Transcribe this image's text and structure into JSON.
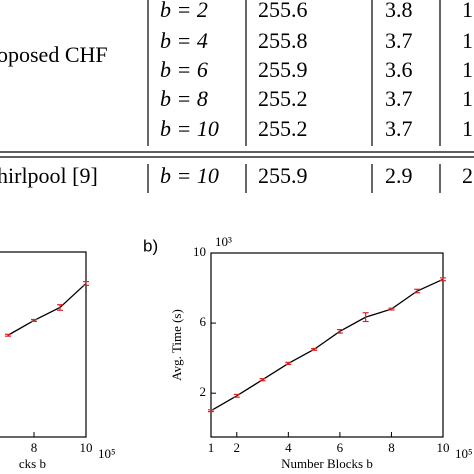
{
  "table": {
    "groups": [
      {
        "method": "oposed CHF",
        "rows": [
          [
            "b = 2",
            "255.6",
            "3.8",
            "1"
          ],
          [
            "b = 4",
            "255.8",
            "3.7",
            "1"
          ],
          [
            "b = 6",
            "255.9",
            "3.6",
            "1"
          ],
          [
            "b = 8",
            "255.2",
            "3.7",
            "1"
          ],
          [
            "b = 10",
            "255.2",
            "3.7",
            "1"
          ]
        ]
      },
      {
        "method": "hirlpool [9]",
        "rows": [
          [
            "b = 10",
            "255.9",
            "2.9",
            "2"
          ]
        ]
      }
    ]
  },
  "chart_data": [
    {
      "type": "line",
      "x": [
        7,
        8,
        9,
        10
      ],
      "values": [
        5.5,
        6.3,
        7.0,
        8.3
      ],
      "errors": [
        0.05,
        0.05,
        0.15,
        0.1
      ],
      "color": "#000000",
      "error_color": "#d62728",
      "xlim": [
        1,
        10
      ],
      "xticks": [
        8,
        10
      ],
      "ylim": [
        0,
        10
      ],
      "x_label": "cks b",
      "x_exponent": "10⁵"
    },
    {
      "type": "line",
      "panel_label": "b)",
      "x": [
        1,
        2,
        3,
        4,
        5,
        6,
        7,
        8,
        9,
        10
      ],
      "values": [
        1.0,
        1.85,
        2.77,
        3.7,
        4.5,
        5.53,
        6.34,
        6.8,
        7.83,
        8.5
      ],
      "errors": [
        0.05,
        0.08,
        0.06,
        0.06,
        0.05,
        0.1,
        0.25,
        0.05,
        0.1,
        0.08
      ],
      "color": "#000000",
      "error_color": "#d62728",
      "xlim": [
        1,
        10
      ],
      "xticks": [
        1,
        2,
        4,
        6,
        8,
        10
      ],
      "ylim": [
        -0.5,
        10
      ],
      "yticks": [
        2,
        6,
        10
      ],
      "x_label": "Number Blocks b",
      "y_label": "Avg. Time (s)",
      "x_exponent": "10⁵",
      "y_exponent": "10³"
    }
  ]
}
